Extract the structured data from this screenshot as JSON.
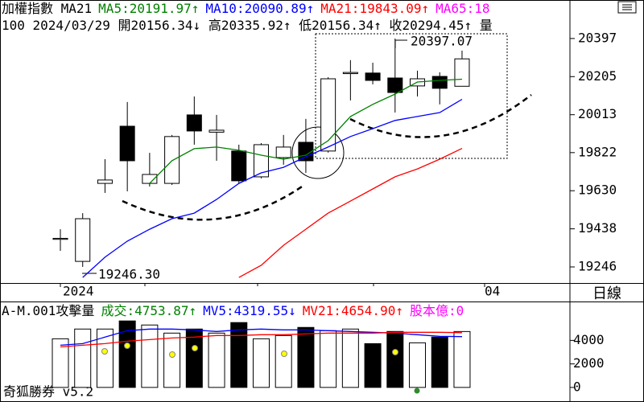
{
  "chart_data": {
    "type": "candlestick",
    "header": [
      {
        "text": "加權指數 MA21",
        "color": "#000000"
      },
      {
        "text": "MA5:20191.97↑",
        "color": "#008000"
      },
      {
        "text": "MA10:20090.89↑",
        "color": "#0000ff"
      },
      {
        "text": "MA21:19843.09↑",
        "color": "#ff0000"
      },
      {
        "text": "MA65:18",
        "color": "#ff00ff"
      }
    ],
    "info": [
      {
        "text": "100 2024/03/29 開20156.34↓ 高20335.92↑ 低20156.34↑ 收20294.45↑ 量",
        "color": "#000000"
      }
    ],
    "open": [
      19385,
      19274,
      19667,
      19955,
      19667,
      19667,
      20012,
      19925,
      19830,
      19700,
      19797,
      19874,
      19830,
      20220,
      20223,
      20198,
      20158,
      20206,
      20156.34
    ],
    "high": [
      19436,
      19517,
      19789,
      20077,
      19821,
      19911,
      20105,
      20012,
      19862,
      19870,
      19911,
      19992,
      20202,
      20288,
      20275,
      20397.07,
      20235,
      20227,
      20335.92
    ],
    "low": [
      19327,
      19246.3,
      19619,
      19627,
      19651,
      19659,
      19862,
      19781,
      19667,
      19692,
      19761,
      19720,
      19822,
      20085,
      20166,
      20024,
      20105,
      20065,
      20156.34
    ],
    "close": [
      19390,
      19489,
      19684,
      19781,
      19712,
      19903,
      19931,
      19935,
      19680,
      19862,
      19850,
      19781,
      20194,
      20226,
      20186,
      20125,
      20194,
      20146,
      20294.45
    ],
    "up_color": "#ffffff",
    "down_color": "#000000",
    "series": [
      {
        "color": "#008000",
        "values": [
          null,
          null,
          null,
          null,
          19667,
          19781,
          19842,
          19850,
          19834,
          19809,
          19789,
          19809,
          19882,
          20004,
          20065,
          20117,
          20178,
          20186,
          20191.97
        ]
      },
      {
        "color": "#0000ff",
        "values": [
          null,
          19193,
          19295,
          19376,
          19436,
          19489,
          19517,
          19586,
          19667,
          19720,
          19748,
          19801,
          19850,
          19903,
          19943,
          19984,
          20004,
          20024,
          20090.89
        ]
      },
      {
        "color": "#ff0000",
        "values": [
          null,
          null,
          null,
          null,
          null,
          null,
          null,
          null,
          19193,
          19254,
          19355,
          19436,
          19517,
          19578,
          19639,
          19700,
          19740,
          19789,
          19843.09
        ]
      }
    ],
    "high_label": "20397.07",
    "low_label": "19246.30",
    "ylim": [
      19165,
      20510
    ],
    "yticks": [
      20397,
      20205,
      20013,
      19822,
      19630,
      19438,
      19246
    ],
    "date_labels": [
      "2024",
      "04"
    ],
    "period": "日線",
    "volume": {
      "header": [
        {
          "text": "A-M.001攻擊量",
          "color": "#000000"
        },
        {
          "text": "成交:4753.87↑",
          "color": "#008000"
        },
        {
          "text": "MV5:4319.55↓",
          "color": "#0000ff"
        },
        {
          "text": "MV21:4654.90↑",
          "color": "#ff0000"
        },
        {
          "text": "股本億:0",
          "color": "#ff00ff"
        }
      ],
      "values": [
        4138,
        4966,
        4966,
        5655,
        5310,
        4621,
        4966,
        4621,
        5517,
        4138,
        4414,
        5103,
        4828,
        4966,
        3724,
        4759,
        3793,
        4276,
        4753.87
      ],
      "series": [
        {
          "color": "#0000ff",
          "values": [
            3586,
            3724,
            4276,
            4828,
            4966,
            4966,
            4897,
            4759,
            4897,
            4966,
            4897,
            4897,
            4828,
            4759,
            4690,
            4621,
            4483,
            4345,
            4319.55
          ]
        },
        {
          "color": "#ff0000",
          "values": [
            3448,
            3586,
            3724,
            3931,
            4069,
            4207,
            4276,
            4414,
            4414,
            4483,
            4483,
            4552,
            4621,
            4621,
            4621,
            4690,
            4690,
            4690,
            4654.9
          ]
        }
      ],
      "ylim": [
        -1241,
        7241
      ],
      "yticks": [
        4000,
        2000,
        0
      ]
    },
    "footer": "奇狐勝券 v5.2"
  }
}
